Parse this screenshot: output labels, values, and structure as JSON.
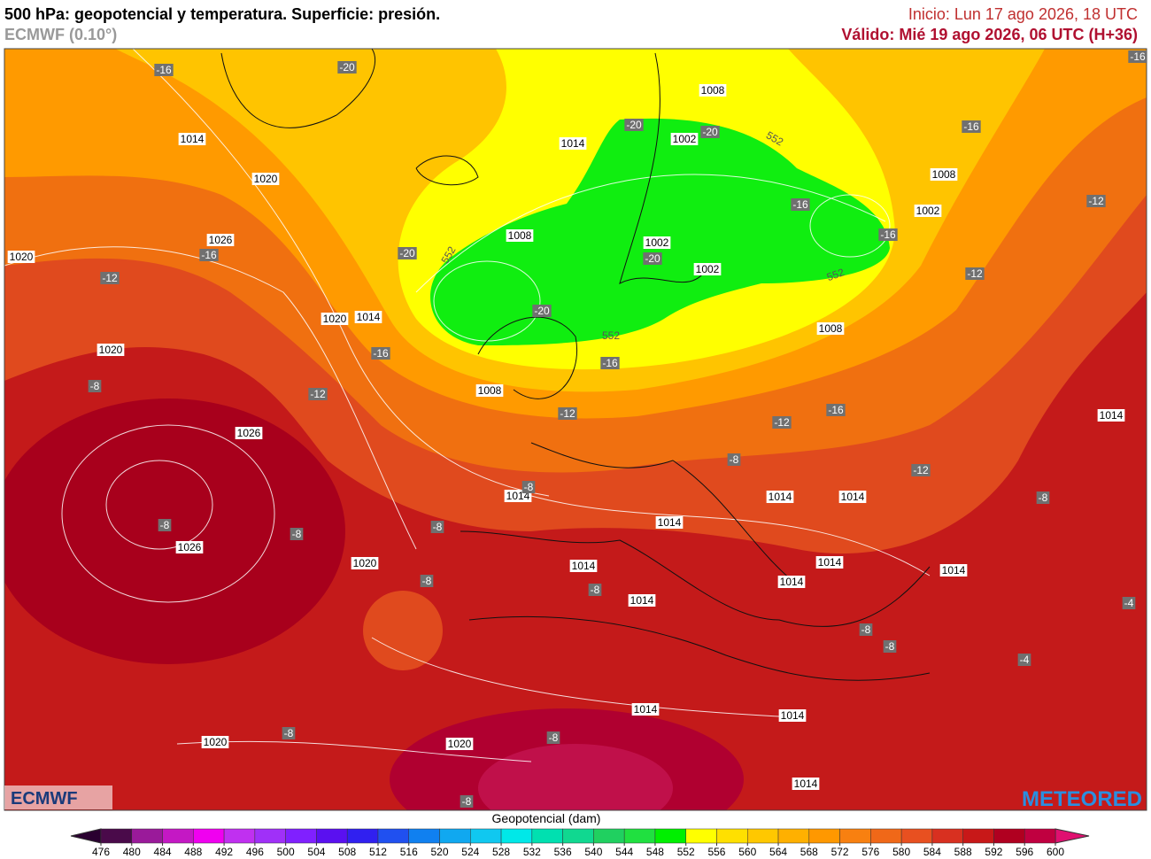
{
  "header": {
    "title": "500 hPa: geopotencial y temperatura. Superficie: presión.",
    "model": "ECMWF (0.10°)",
    "init": "Inicio: Lun 17 ago 2026, 18 UTC",
    "valid": "Válido: Mié 19 ago 2026, 06 UTC (H+36)"
  },
  "map": {
    "pressure_labels": [
      "1014",
      "1020",
      "1026",
      "1020",
      "1020",
      "1014",
      "1020",
      "1026",
      "1026",
      "1020",
      "1020",
      "1020",
      "1008",
      "1002",
      "1014",
      "1008",
      "1002",
      "1002",
      "1008",
      "1002",
      "1008",
      "1008",
      "1014",
      "1014",
      "1014",
      "1014",
      "1014",
      "1014",
      "1014",
      "1014",
      "1014",
      "1014",
      "1014",
      "1014",
      "1014"
    ],
    "temperature_labels": [
      "-16",
      "-20",
      "-16",
      "-12",
      "-20",
      "-16",
      "-8",
      "-12",
      "-8",
      "-8",
      "-8",
      "-8",
      "-20",
      "-20",
      "-16",
      "-16",
      "-16",
      "-12",
      "-20",
      "-20",
      "-12",
      "-16",
      "-12",
      "-16",
      "-12",
      "-8",
      "-12",
      "-8",
      "-8",
      "-8",
      "-4",
      "-8",
      "-8",
      "-4",
      "-8",
      "-8",
      "-8",
      "-16"
    ],
    "contour_labels": [
      "552",
      "552",
      "552",
      "552"
    ]
  },
  "legend": {
    "title": "Geopotencial (dam)",
    "ticks": [
      476,
      480,
      484,
      488,
      492,
      496,
      500,
      504,
      508,
      512,
      516,
      520,
      524,
      528,
      532,
      536,
      540,
      544,
      548,
      552,
      556,
      560,
      564,
      568,
      572,
      576,
      580,
      584,
      588,
      592,
      596,
      600
    ],
    "colors": [
      "#4a0a4a",
      "#9a1a9a",
      "#c418c4",
      "#f000f0",
      "#c030f0",
      "#a030f8",
      "#8020ff",
      "#5a10f0",
      "#3020f0",
      "#2050f0",
      "#1080f0",
      "#10a8f0",
      "#10c8f0",
      "#00e8e8",
      "#00e0b0",
      "#10d890",
      "#20d060",
      "#20e040",
      "#00f000",
      "#ffff00",
      "#ffe000",
      "#ffc800",
      "#ffb000",
      "#ff9800",
      "#f88010",
      "#f06818",
      "#e85020",
      "#d83020",
      "#c81818",
      "#b00020",
      "#c00040"
    ],
    "under_color": "#2a0030",
    "over_color": "#e01070"
  },
  "logos": {
    "left": "ECMWF",
    "right": "METEORED"
  }
}
